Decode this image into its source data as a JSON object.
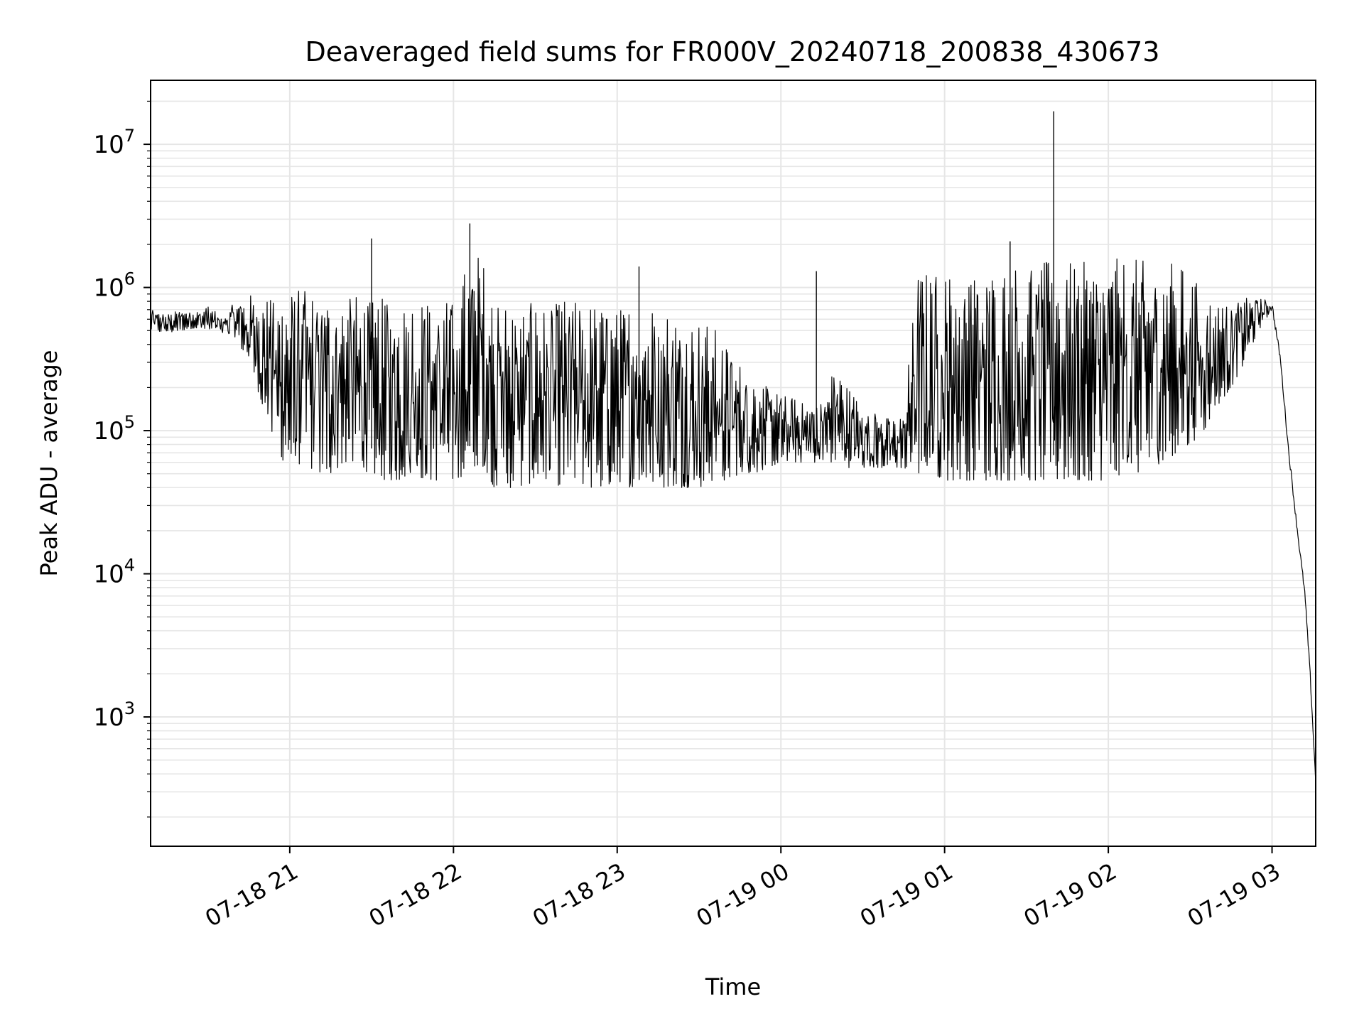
{
  "chart_data": {
    "type": "line",
    "title": "Deaveraged field sums for FR000V_20240718_200838_430673",
    "xlabel": "Time",
    "ylabel": "Peak ADU - average",
    "yscale": "log",
    "xlim": [
      "2024-07-18 20:09",
      "2024-07-19 03:16"
    ],
    "ylim": [
      125,
      28000000
    ],
    "grid": true,
    "x_ticks": [
      {
        "value": "2024-07-18 21:00",
        "label": "07-18 21"
      },
      {
        "value": "2024-07-18 22:00",
        "label": "07-18 22"
      },
      {
        "value": "2024-07-18 23:00",
        "label": "07-18 23"
      },
      {
        "value": "2024-07-19 00:00",
        "label": "07-19 00"
      },
      {
        "value": "2024-07-19 01:00",
        "label": "07-19 01"
      },
      {
        "value": "2024-07-19 02:00",
        "label": "07-19 02"
      },
      {
        "value": "2024-07-19 03:00",
        "label": "07-19 03"
      }
    ],
    "y_ticks": [
      {
        "value": 1000,
        "base": "10",
        "exp": "3"
      },
      {
        "value": 10000,
        "base": "10",
        "exp": "4"
      },
      {
        "value": 100000,
        "base": "10",
        "exp": "5"
      },
      {
        "value": 1000000,
        "base": "10",
        "exp": "6"
      },
      {
        "value": 10000000,
        "base": "10",
        "exp": "7"
      }
    ],
    "line_color": "#000000",
    "series": [
      {
        "x": [
          "2024-07-18 20:09",
          "2024-07-18 20:15",
          "2024-07-18 20:20",
          "2024-07-18 20:25",
          "2024-07-18 20:30",
          "2024-07-18 20:35",
          "2024-07-18 20:40",
          "2024-07-18 20:45",
          "2024-07-18 20:50",
          "2024-07-18 20:55",
          "2024-07-18 21:00",
          "2024-07-18 21:05",
          "2024-07-18 21:10",
          "2024-07-18 21:15",
          "2024-07-18 21:20",
          "2024-07-18 21:25",
          "2024-07-18 21:30",
          "2024-07-18 21:35",
          "2024-07-18 21:40",
          "2024-07-18 21:45",
          "2024-07-18 21:50",
          "2024-07-18 21:55",
          "2024-07-18 22:00",
          "2024-07-18 22:05",
          "2024-07-18 22:10",
          "2024-07-18 22:15",
          "2024-07-18 22:20",
          "2024-07-18 22:25",
          "2024-07-18 22:30",
          "2024-07-18 22:35",
          "2024-07-18 22:40",
          "2024-07-18 22:45",
          "2024-07-18 22:50",
          "2024-07-18 22:55",
          "2024-07-18 23:00",
          "2024-07-18 23:05",
          "2024-07-18 23:10",
          "2024-07-18 23:15",
          "2024-07-18 23:20",
          "2024-07-18 23:25",
          "2024-07-18 23:30",
          "2024-07-18 23:35",
          "2024-07-18 23:40",
          "2024-07-18 23:45",
          "2024-07-18 23:50",
          "2024-07-18 23:55",
          "2024-07-19 00:00",
          "2024-07-19 00:05",
          "2024-07-19 00:10",
          "2024-07-19 00:15",
          "2024-07-19 00:20",
          "2024-07-19 00:25",
          "2024-07-19 00:30",
          "2024-07-19 00:35",
          "2024-07-19 00:40",
          "2024-07-19 00:45",
          "2024-07-19 00:50",
          "2024-07-19 00:55",
          "2024-07-19 01:00",
          "2024-07-19 01:05",
          "2024-07-19 01:10",
          "2024-07-19 01:15",
          "2024-07-19 01:20",
          "2024-07-19 01:25",
          "2024-07-19 01:30",
          "2024-07-19 01:35",
          "2024-07-19 01:40",
          "2024-07-19 01:45",
          "2024-07-19 01:50",
          "2024-07-19 01:55",
          "2024-07-19 02:00",
          "2024-07-19 02:05",
          "2024-07-19 02:10",
          "2024-07-19 02:15",
          "2024-07-19 02:20",
          "2024-07-19 02:25",
          "2024-07-19 02:30",
          "2024-07-19 02:35",
          "2024-07-19 02:40",
          "2024-07-19 02:45",
          "2024-07-19 02:50",
          "2024-07-19 02:55",
          "2024-07-19 03:00",
          "2024-07-19 03:03",
          "2024-07-19 03:06",
          "2024-07-19 03:09",
          "2024-07-19 03:12",
          "2024-07-19 03:14",
          "2024-07-19 03:16"
        ],
        "y_high": [
          700000,
          650000,
          700000,
          680000,
          750000,
          620000,
          800000,
          900000,
          850000,
          900000,
          950000,
          1000000,
          900000,
          950000,
          850000,
          900000,
          800000,
          850000,
          850000,
          900000,
          850000,
          850000,
          800000,
          1500000,
          1800000,
          850000,
          800000,
          750000,
          800000,
          700000,
          850000,
          800000,
          800000,
          750000,
          700000,
          800000,
          900000,
          750000,
          700000,
          650000,
          600000,
          550000,
          400000,
          300000,
          250000,
          200000,
          180000,
          170000,
          160000,
          160000,
          300000,
          200000,
          150000,
          140000,
          120000,
          130000,
          1300000,
          1300000,
          1300000,
          1200000,
          1300000,
          1300000,
          1400000,
          1500000,
          1500000,
          1500000,
          1600000,
          1500000,
          1500000,
          1500000,
          1600000,
          1600000,
          1600000,
          1500000,
          1500000,
          1500000,
          1300000,
          900000,
          800000,
          750000,
          850000,
          850000,
          800000,
          350000,
          80000,
          25000,
          9000,
          2500,
          500
        ],
        "y_low": [
          500000,
          480000,
          500000,
          520000,
          500000,
          480000,
          450000,
          300000,
          150000,
          70000,
          55000,
          60000,
          50000,
          50000,
          60000,
          55000,
          50000,
          45000,
          45000,
          50000,
          45000,
          45000,
          45000,
          50000,
          60000,
          40000,
          40000,
          40000,
          45000,
          45000,
          40000,
          45000,
          40000,
          40000,
          45000,
          40000,
          45000,
          40000,
          40000,
          40000,
          40000,
          45000,
          45000,
          50000,
          50000,
          55000,
          60000,
          60000,
          60000,
          60000,
          60000,
          55000,
          55000,
          55000,
          55000,
          55000,
          50000,
          50000,
          45000,
          45000,
          45000,
          45000,
          45000,
          45000,
          45000,
          45000,
          45000,
          45000,
          45000,
          45000,
          45000,
          50000,
          50000,
          55000,
          60000,
          70000,
          80000,
          100000,
          150000,
          200000,
          300000,
          500000,
          700000,
          300000,
          70000,
          20000,
          6000,
          1500,
          250
        ]
      }
    ],
    "spikes": [
      {
        "x": "2024-07-18 21:30",
        "y": 2200000
      },
      {
        "x": "2024-07-18 22:06",
        "y": 2800000
      },
      {
        "x": "2024-07-18 23:08",
        "y": 1400000
      },
      {
        "x": "2024-07-19 00:13",
        "y": 1300000
      },
      {
        "x": "2024-07-19 01:24",
        "y": 2100000
      },
      {
        "x": "2024-07-19 01:40",
        "y": 17000000
      }
    ]
  }
}
